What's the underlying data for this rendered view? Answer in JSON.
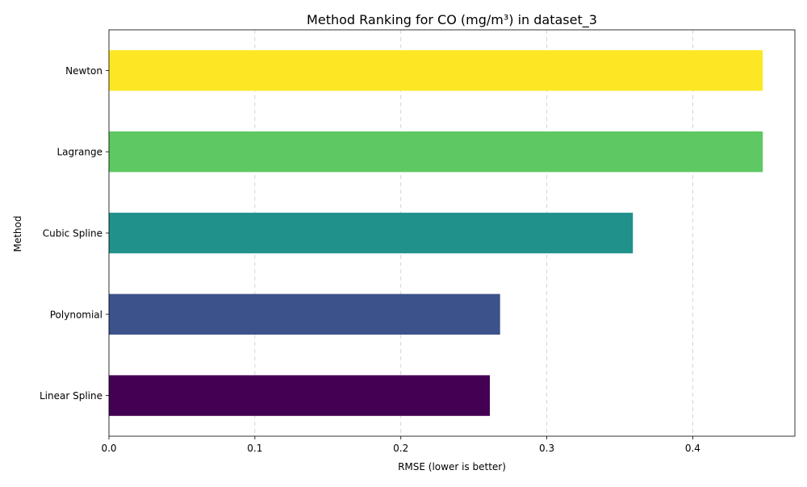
{
  "chart_data": {
    "type": "bar",
    "orientation": "horizontal",
    "title": "Method Ranking for CO (mg/m³) in dataset_3",
    "xlabel": "RMSE (lower is better)",
    "ylabel": "Method",
    "xlim": [
      0,
      0.47
    ],
    "xticks": [
      0.0,
      0.1,
      0.2,
      0.3,
      0.4
    ],
    "xtick_labels": [
      "0.0",
      "0.1",
      "0.2",
      "0.3",
      "0.4"
    ],
    "grid": "x-axis dashed",
    "categories": [
      "Linear Spline",
      "Polynomial",
      "Cubic Spline",
      "Lagrange",
      "Newton"
    ],
    "values": [
      0.261,
      0.268,
      0.359,
      0.448,
      0.448
    ],
    "colors": [
      "#440154",
      "#3b528b",
      "#21918c",
      "#5ec962",
      "#fde725"
    ]
  }
}
